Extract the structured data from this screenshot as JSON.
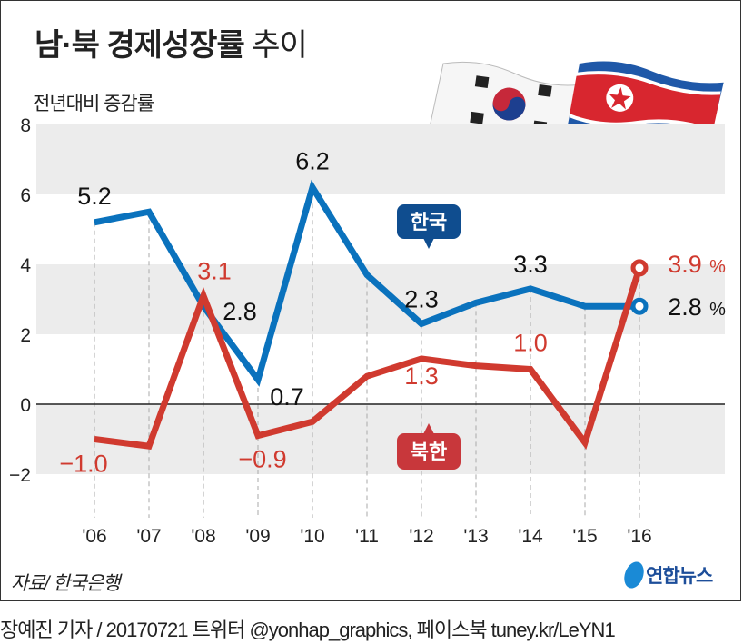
{
  "title_bold": "남·북 경제성장률",
  "title_light": "추이",
  "source": "자료/ 한국은행",
  "logo_text": "연합뉴스",
  "credit": "장예진 기자 / 20170721 트위터 @yonhap_graphics, 페이스북 tuney.kr/LeYN1",
  "colors": {
    "south": "#0a72bd",
    "north": "#d03a2f",
    "band": "#ececec",
    "south_tag": "#0f4d8f",
    "north_tag": "#c8373b"
  },
  "chart_data": {
    "type": "line",
    "ylabel": "전년대비 증감률",
    "ylim": [
      -2,
      8
    ],
    "yticks": [
      "8",
      "6",
      "4",
      "2",
      "0",
      "−2"
    ],
    "ytick_values": [
      8,
      6,
      4,
      2,
      0,
      -2
    ],
    "categories": [
      "'06",
      "'07",
      "'08",
      "'09",
      "'10",
      "'11",
      "'12",
      "'13",
      "'14",
      "'15",
      "'16"
    ],
    "grid": "alternating horizontal bands, dashed vertical lines",
    "series": [
      {
        "name": "한국",
        "values": [
          5.2,
          5.5,
          2.8,
          0.7,
          6.2,
          3.7,
          2.3,
          2.9,
          3.3,
          2.8,
          2.8
        ],
        "labels": [
          "5.2",
          null,
          "2.8",
          "0.7",
          "6.2",
          null,
          "2.3",
          null,
          "3.3",
          null,
          "2.8"
        ]
      },
      {
        "name": "북한",
        "values": [
          -1.0,
          -1.2,
          3.1,
          -0.9,
          -0.5,
          0.8,
          1.3,
          1.1,
          1.0,
          -1.1,
          3.9
        ],
        "labels": [
          "−1.0",
          null,
          "3.1",
          "−0.9",
          null,
          null,
          "1.3",
          null,
          "1.0",
          null,
          "3.9"
        ]
      }
    ],
    "unit": "%"
  }
}
